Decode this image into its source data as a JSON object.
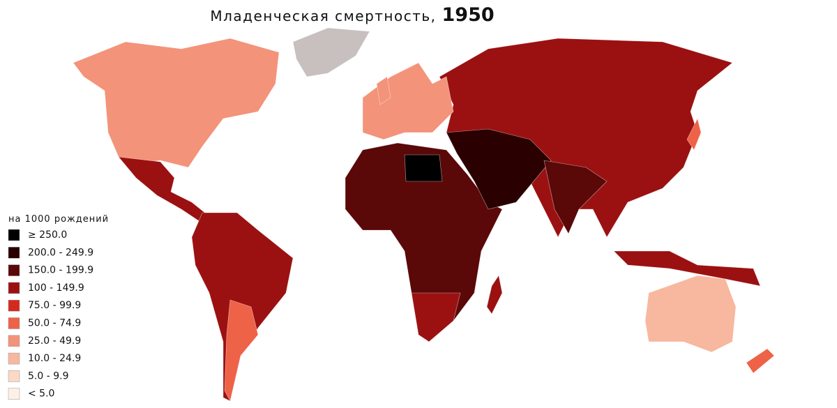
{
  "title": {
    "text": "Младенческая смертность,",
    "year": "1950"
  },
  "legend": {
    "title": "на 1000 рождений",
    "items": [
      {
        "label": "≥ 250.0",
        "color": "#000000"
      },
      {
        "label": "200.0 - 249.9",
        "color": "#2a0000"
      },
      {
        "label": "150.0 - 199.9",
        "color": "#5a0808"
      },
      {
        "label": "100 - 149.9",
        "color": "#9b1111"
      },
      {
        "label": "75.0 - 99.9",
        "color": "#d42a1e"
      },
      {
        "label": "50.0 - 74.9",
        "color": "#ee6248"
      },
      {
        "label": "25.0 - 49.9",
        "color": "#f3937a"
      },
      {
        "label": "10.0 - 24.9",
        "color": "#f7b89f"
      },
      {
        "label": "5.0 - 9.9",
        "color": "#fbd9c5"
      },
      {
        "label": "< 5.0",
        "color": "#fdf0e5"
      }
    ]
  }
}
